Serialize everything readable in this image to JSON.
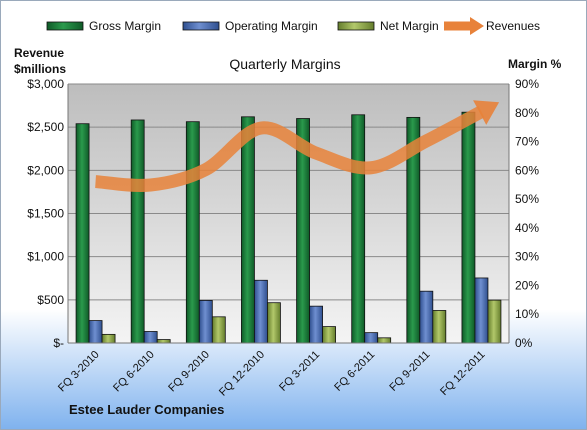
{
  "chart_data": {
    "type": "bar",
    "title": "Quarterly Margins",
    "source_label": "Estee Lauder Companies",
    "left_axis": {
      "label_line1": "Revenue",
      "label_line2": "$millions",
      "ylim": [
        0,
        3000
      ],
      "ticks": [
        0,
        500,
        1000,
        1500,
        2000,
        2500,
        3000
      ],
      "tick_labels": [
        "$-",
        "$500",
        "$1,000",
        "$1,500",
        "$2,000",
        "$2,500",
        "$3,000"
      ]
    },
    "right_axis": {
      "label": "Margin %",
      "ylim": [
        0,
        90
      ],
      "ticks": [
        0,
        10,
        20,
        30,
        40,
        50,
        60,
        70,
        80,
        90
      ],
      "tick_labels": [
        "0%",
        "10%",
        "20%",
        "30%",
        "40%",
        "50%",
        "60%",
        "70%",
        "80%",
        "90%"
      ]
    },
    "categories": [
      "FQ 3-2010",
      "FQ 6-2010",
      "FQ 9-2010",
      "FQ 12-2010",
      "FQ 3-2011",
      "FQ 6-2011",
      "FQ 9-2011",
      "FQ 12-2011"
    ],
    "series": [
      {
        "name": "Gross Margin",
        "axis": "right",
        "kind": "bar",
        "color": "#1a7a3a",
        "values": [
          76.2,
          77.5,
          76.9,
          78.6,
          78.0,
          79.3,
          78.4,
          80.2
        ]
      },
      {
        "name": "Operating Margin",
        "axis": "right",
        "kind": "bar",
        "color": "#4a6fb5",
        "values": [
          7.8,
          4.0,
          14.8,
          21.8,
          12.8,
          3.6,
          18.0,
          22.6
        ]
      },
      {
        "name": "Net Margin",
        "axis": "right",
        "kind": "bar",
        "color": "#8aa64a",
        "values": [
          3.0,
          1.2,
          9.1,
          14.0,
          5.7,
          1.8,
          11.3,
          14.9
        ]
      },
      {
        "name": "Revenues",
        "axis": "left",
        "kind": "line",
        "color": "#e8823a",
        "values": [
          1870,
          1830,
          2010,
          2490,
          2200,
          2030,
          2340,
          2680
        ]
      }
    ],
    "legend_position": "top",
    "grid": true,
    "colors": {
      "plot_bg_top": "#bdbdbd",
      "plot_bg_bottom": "#f4f4f4",
      "page_bg_top": "#ffffff",
      "page_bg_bottom": "#7fb2ee",
      "gridline": "#8a8a8a"
    }
  }
}
